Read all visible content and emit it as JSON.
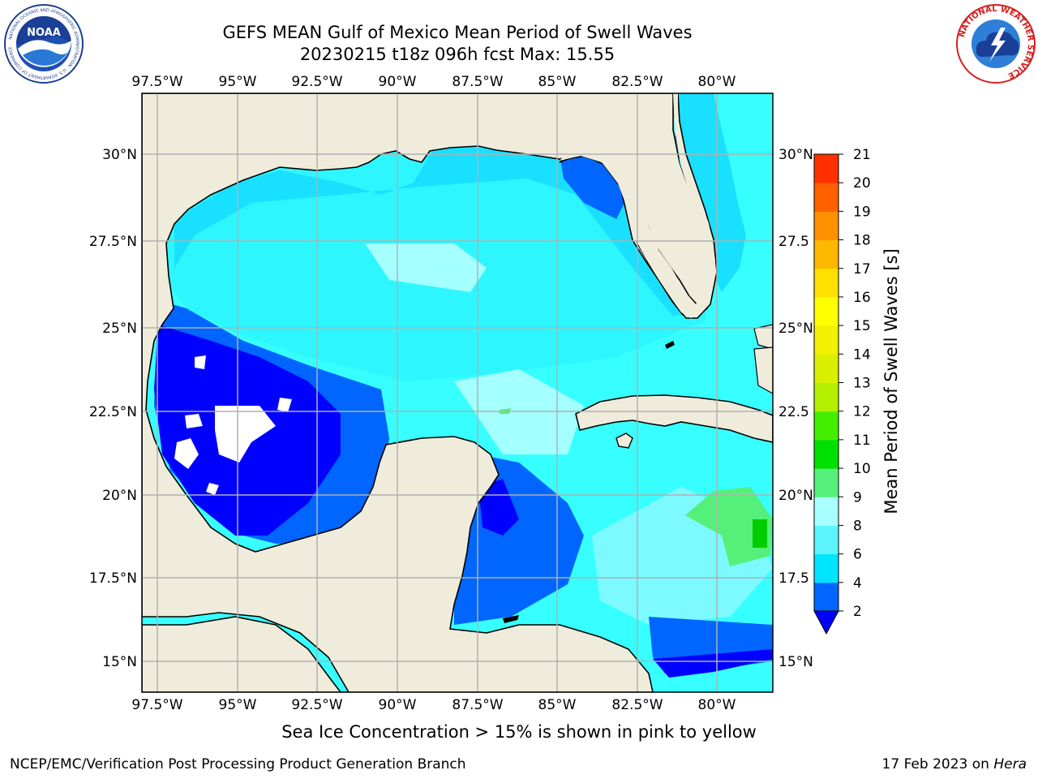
{
  "header": {
    "title_line1": "GEFS MEAN Gulf of Mexico Mean Period of Swell Waves",
    "title_line2": "20230215 t18z 096h fcst   Max: 15.55"
  },
  "logos": {
    "noaa": "NOAA",
    "noaa_ring": "NATIONAL OCEANIC AND ATMOSPHERIC ADMINISTRATION · U.S. DEPARTMENT OF COMMERCE",
    "nws_ring": "NATIONAL WEATHER SERVICE"
  },
  "map": {
    "lon_labels": [
      "97.5°W",
      "95°W",
      "92.5°W",
      "90°W",
      "87.5°W",
      "85°W",
      "82.5°W",
      "80°W"
    ],
    "lat_labels_left": [
      "30°N",
      "27.5°N",
      "25°N",
      "22.5°N",
      "20°N",
      "17.5°N",
      "15°N"
    ],
    "lat_labels_right": [
      "30°N",
      "27.5",
      "25°N",
      "22.5",
      "20°N",
      "17.5",
      "15°N"
    ],
    "colors": {
      "land": "#efecdc",
      "grid": "#b0b0b0"
    }
  },
  "colorbar": {
    "label": "Mean Period of Swell Waves [s]",
    "ticks": [
      "2",
      "4",
      "6",
      "8",
      "9",
      "10",
      "11",
      "12",
      "13",
      "14",
      "15",
      "16",
      "17",
      "18",
      "19",
      "20",
      "21"
    ],
    "colors": [
      "#0066ff",
      "#00e5ff",
      "#5cf5ff",
      "#a8ffff",
      "#55f07a",
      "#00e000",
      "#44ee00",
      "#b2f000",
      "#d8f000",
      "#f0f000",
      "#ffff00",
      "#ffe000",
      "#ffb800",
      "#ff9000",
      "#ff6000",
      "#ff3000",
      "#ff0000"
    ],
    "extend_color": "#0000ff"
  },
  "caption": "Sea Ice Concentration > 15% is shown in pink to yellow",
  "footer": {
    "left": "NCEP/EMC/Verification Post Processing Product Generation Branch",
    "right_prefix": "17 Feb 2023 on ",
    "right_host": "Hera"
  }
}
